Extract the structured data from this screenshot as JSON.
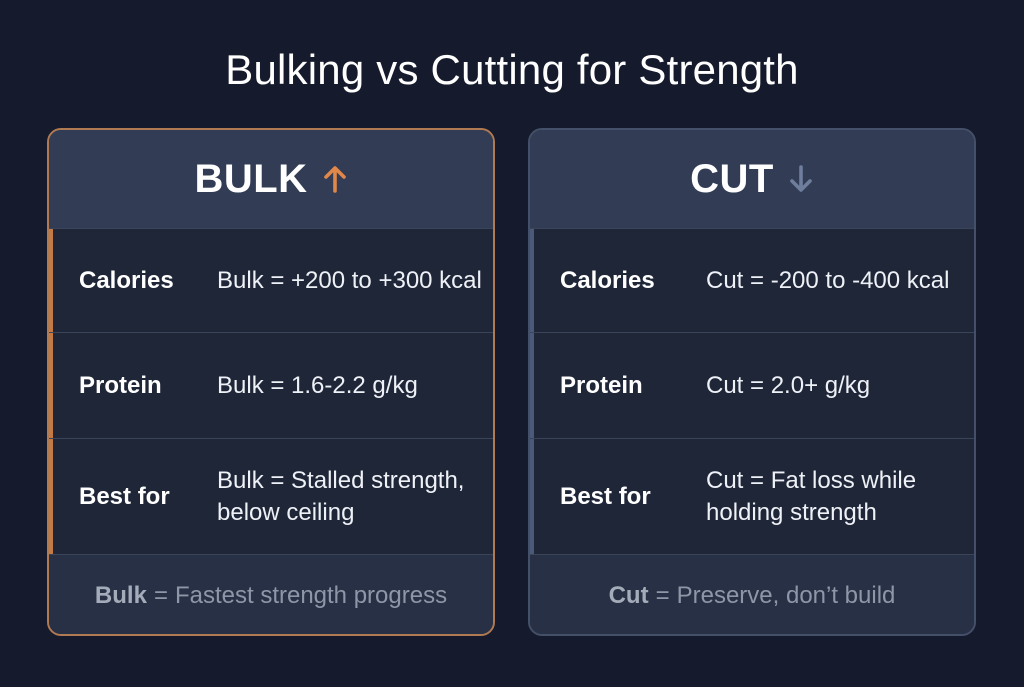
{
  "title": "Bulking vs Cutting for Strength",
  "colors": {
    "bulk_accent": "#c47a45",
    "cut_accent": "#4a5a78",
    "background": "#151b2c"
  },
  "cards": [
    {
      "heading": "BULK",
      "icon": "arrow-up-icon",
      "rows": [
        {
          "label": "Calories",
          "value": "Bulk = +200 to +300 kcal"
        },
        {
          "label": "Protein",
          "value": "Bulk = 1.6-2.2 g/kg"
        },
        {
          "label": "Best for",
          "value": "Bulk = Stalled strength, below ceiling"
        }
      ],
      "footer": {
        "key": "Bulk",
        "sep": "=",
        "text": "Fastest strength progress"
      }
    },
    {
      "heading": "CUT",
      "icon": "arrow-down-icon",
      "rows": [
        {
          "label": "Calories",
          "value": "Cut = -200 to -400 kcal"
        },
        {
          "label": "Protein",
          "value": "Cut = 2.0+ g/kg"
        },
        {
          "label": "Best for",
          "value": "Cut = Fat loss while holding strength"
        }
      ],
      "footer": {
        "key": "Cut",
        "sep": "=",
        "text": "Preserve, don’t build"
      }
    }
  ]
}
